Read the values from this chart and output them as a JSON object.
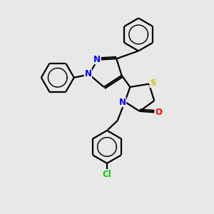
{
  "bg_color": "#e8e8e8",
  "bond_color": "#000000",
  "N_color": "#0000ff",
  "O_color": "#ff0000",
  "S_color": "#cccc00",
  "Cl_color": "#00cc00",
  "line_width": 1.6,
  "figsize": [
    3.0,
    3.0
  ],
  "dpi": 100,
  "xlim": [
    0,
    10
  ],
  "ylim": [
    0,
    10
  ]
}
